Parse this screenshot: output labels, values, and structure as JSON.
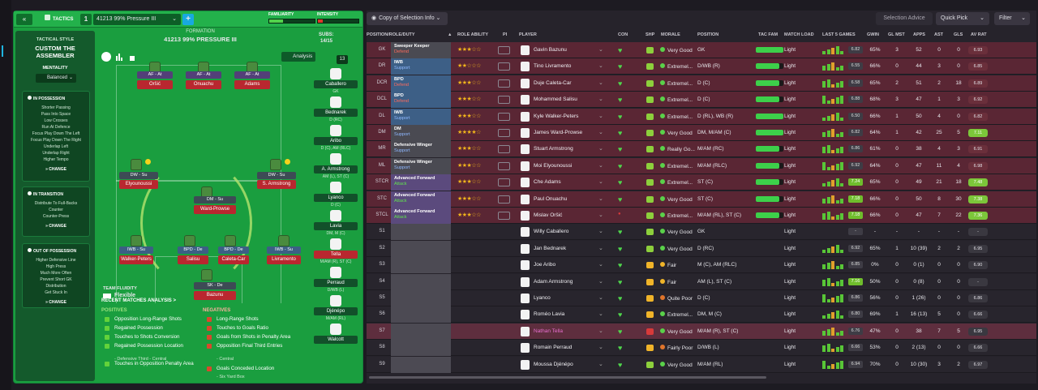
{
  "header": {
    "back": "«",
    "tab_label": "TACTICS",
    "tactic_num": "1",
    "tactic_name": "41213 99% Pressure III",
    "plus": "+",
    "familiarity_label": "FAMILIARITY",
    "intensity_label": "INTENSITY"
  },
  "sidebar": {
    "style_label": "TACTICAL STYLE",
    "style_name": "CUSTOM THE ASSEMBLER",
    "mentality_label": "MENTALITY",
    "mentality_value": "Balanced",
    "in_possession": {
      "title": "IN POSSESSION",
      "items": [
        "Shorter Passing",
        "Pass Into Space",
        "Low Crosses",
        "Run At Defence",
        "Focus Play Down The Left",
        "Focus Play Down The Right",
        "Underlap Left",
        "Underlap Right",
        "Higher Tempo"
      ],
      "change": "CHANGE"
    },
    "in_transition": {
      "title": "IN TRANSITION",
      "items": [
        "Distribute To Full-Backs",
        "Counter",
        "Counter-Press"
      ],
      "change": "CHANGE"
    },
    "out_of_possession": {
      "title": "OUT OF POSSESSION",
      "items": [
        "Higher Defensive Line",
        "High Press",
        "Much More Often",
        "Prevent Short GK",
        "Distribution",
        "Get Stuck In"
      ],
      "change": "CHANGE"
    }
  },
  "pitch": {
    "formation_label": "FORMATION",
    "formation_name": "41213 99% PRESSURE III",
    "analysis": "Analysis",
    "fluidity_label": "TEAM FLUIDITY",
    "fluidity_value": "Flexible",
    "players": {
      "af1_role": "AF - At",
      "af2_role": "AF - At",
      "af3_role": "AF - At",
      "af1": "Oršić",
      "af2": "Onuachu",
      "af3": "Adams",
      "dwl_role": "DW - Su",
      "dwr_role": "DW - Su",
      "dwl": "Elyounoussi",
      "dwr": "S. Armstrong",
      "dm_role": "DM - Su",
      "dm": "Ward-Prowse",
      "iwbl_role": "IWB - Su",
      "bpd1_role": "BPD - De",
      "bpd2_role": "BPD - De",
      "iwbr_role": "IWB - Su",
      "iwbl": "Walker-Peters",
      "bpd1": "Salisu",
      "bpd2": "Caleta-Car",
      "iwbr": "Livramento",
      "sk_role": "SK - De",
      "sk": "Bazunu"
    }
  },
  "subs": {
    "label": "SUBS:",
    "count": "14/15",
    "badge": "13",
    "list": [
      {
        "name": "Caballero",
        "pos": "GK"
      },
      {
        "name": "Bednarek",
        "pos": "D (RC)"
      },
      {
        "name": "Aribo",
        "pos": "D (C), AM (RLC)"
      },
      {
        "name": "A. Armstrong",
        "pos": "AM (L), ST (C)"
      },
      {
        "name": "Lyanco",
        "pos": "D (C)"
      },
      {
        "name": "Lavia",
        "pos": "DM, M (C)"
      },
      {
        "name": "Tella",
        "pos": "M/AM (R), ST (C)"
      },
      {
        "name": "Perraud",
        "pos": "D/WB (L)"
      },
      {
        "name": "Djénépo",
        "pos": "M/AM (RL)"
      },
      {
        "name": "Walcott",
        "pos": ""
      }
    ]
  },
  "analysis": {
    "title": "RECENT MATCHES ANALYSIS >",
    "positives_label": "POSITIVES",
    "negatives_label": "NEGATIVES",
    "positives": [
      "Opposition Long-Range Shots",
      "Regained Possession",
      "Touches to Shots Conversion",
      "Regained Possession Location",
      "Touches in Opposition Penalty Area"
    ],
    "positive_sub": "- Defensive Third - Central",
    "negatives": [
      "Long-Range Shots",
      "Touches to Goals Ratio",
      "Goals from Shots in Penalty Area",
      "Opposition Final Third Entries",
      "Goals Conceded Location"
    ],
    "neg_sub1": "- Central",
    "neg_sub2": "- Six Yard Box"
  },
  "toolbar": {
    "copy": "Copy of Selection Info",
    "advice": "Selection Advice",
    "quick_pick": "Quick Pick",
    "filter": "Filter"
  },
  "columns": {
    "pos": "POSITION/ROLE/DUTY",
    "ra": "ROLE ABILITY",
    "pi": "PI",
    "player": "PLAYER",
    "con": "CON",
    "shp": "SHP",
    "morale": "MORALE",
    "position": "POSITION",
    "tacfam": "TAC FAM",
    "mload": "MATCH LOAD",
    "last5": "LAST 5 GAMES",
    "gwin": "GWIN",
    "glmst": "GL MST",
    "apps": "APPS",
    "ast": "AST",
    "gls": "GLS",
    "avrat": "AV RAT"
  },
  "rows": [
    {
      "pos": "GK",
      "role": "Sweeper Keeper",
      "duty": "Defend",
      "stars": "★★★☆☆",
      "name": "Gavin Bazunu",
      "morale": "Very Good",
      "position": "GK",
      "load": "Light",
      "l5": "6.82",
      "gwin": "65%",
      "glm": "3",
      "apps": "52",
      "ast": "0",
      "gls": "0",
      "av": "6.93"
    },
    {
      "pos": "DR",
      "role": "IWB",
      "duty": "Support",
      "stars": "★★☆☆☆",
      "name": "Tino Livramento",
      "morale": "Extremel...",
      "position": "D/WB (R)",
      "load": "Light",
      "l5": "6.55",
      "gwin": "66%",
      "glm": "0",
      "apps": "44",
      "ast": "3",
      "gls": "0",
      "av": "6.85"
    },
    {
      "pos": "DCR",
      "role": "BPD",
      "duty": "Defend",
      "stars": "★★★☆☆",
      "name": "Duje Caleta-Car",
      "morale": "Extremel...",
      "position": "D (C)",
      "load": "Light",
      "l5": "6.58",
      "gwin": "65%",
      "glm": "2",
      "apps": "51",
      "ast": "2",
      "gls": "18",
      "av": "6.89"
    },
    {
      "pos": "DCL",
      "role": "BPD",
      "duty": "Defend",
      "stars": "★★★☆☆",
      "name": "Mohammed Salisu",
      "morale": "Extremel...",
      "position": "D (C)",
      "load": "Light",
      "l5": "6.88",
      "gwin": "68%",
      "glm": "3",
      "apps": "47",
      "ast": "1",
      "gls": "3",
      "av": "6.92"
    },
    {
      "pos": "DL",
      "role": "IWB",
      "duty": "Support",
      "stars": "★★★☆☆",
      "name": "Kyle Walker-Peters",
      "morale": "Extremel...",
      "position": "D (RL), WB (R)",
      "load": "Light",
      "l5": "6.50",
      "gwin": "66%",
      "glm": "1",
      "apps": "50",
      "ast": "4",
      "gls": "0",
      "av": "6.82"
    },
    {
      "pos": "DM",
      "role": "DM",
      "duty": "Support",
      "stars": "★★★★☆",
      "name": "James Ward-Prowse",
      "morale": "Very Good",
      "position": "DM, M/AM (C)",
      "load": "Light",
      "l5": "6.82",
      "gwin": "64%",
      "glm": "1",
      "apps": "42",
      "ast": "25",
      "gls": "5",
      "av": "7.11"
    },
    {
      "pos": "MR",
      "role": "Defensive Winger",
      "duty": "Support",
      "stars": "★★★☆☆",
      "name": "Stuart Armstrong",
      "morale": "Really Go...",
      "position": "M/AM (RC)",
      "load": "Light",
      "l5": "6.86",
      "gwin": "61%",
      "glm": "0",
      "apps": "38",
      "ast": "4",
      "gls": "3",
      "av": "6.91"
    },
    {
      "pos": "ML",
      "role": "Defensive Winger",
      "duty": "Support",
      "stars": "★★★☆☆",
      "name": "Moi Elyounoussi",
      "morale": "Extremel...",
      "position": "M/AM (RLC)",
      "load": "Light",
      "l5": "6.92",
      "gwin": "64%",
      "glm": "0",
      "apps": "47",
      "ast": "11",
      "gls": "4",
      "av": "6.98"
    },
    {
      "pos": "STCR",
      "role": "Advanced Forward",
      "duty": "Attack",
      "stars": "★★★☆☆",
      "name": "Che Adams",
      "morale": "Extremel...",
      "position": "ST (C)",
      "load": "Light",
      "l5": "7.24",
      "gwin": "65%",
      "glm": "0",
      "apps": "49",
      "ast": "21",
      "gls": "18",
      "av": "7.48"
    },
    {
      "pos": "STC",
      "role": "Advanced Forward",
      "duty": "Attack",
      "stars": "★★★☆☆",
      "name": "Paul Onuachu",
      "morale": "Very Good",
      "position": "ST (C)",
      "load": "Light",
      "l5": "7.18",
      "gwin": "66%",
      "glm": "0",
      "apps": "50",
      "ast": "8",
      "gls": "30",
      "av": "7.38"
    },
    {
      "pos": "STCL",
      "role": "Advanced Forward",
      "duty": "Attack",
      "stars": "★★★☆☆",
      "name": "Mislav Oršić",
      "morale": "Extremel...",
      "position": "M/AM (RL), ST (C)",
      "load": "Light",
      "l5": "7.18",
      "gwin": "66%",
      "glm": "0",
      "apps": "47",
      "ast": "7",
      "gls": "22",
      "av": "7.36"
    },
    {
      "pos": "S1",
      "role": "",
      "duty": "",
      "stars": "",
      "name": "Willy Caballero",
      "morale": "Very Good",
      "position": "GK",
      "load": "Light",
      "l5": "-",
      "gwin": "-",
      "glm": "-",
      "apps": "-",
      "ast": "-",
      "gls": "-",
      "av": "-"
    },
    {
      "pos": "S2",
      "role": "",
      "duty": "",
      "stars": "",
      "name": "Jan Bednarek",
      "morale": "Very Good",
      "position": "D (RC)",
      "load": "Light",
      "l5": "6.92",
      "gwin": "65%",
      "glm": "1",
      "apps": "10 (39)",
      "ast": "2",
      "gls": "2",
      "av": "6.95"
    },
    {
      "pos": "S3",
      "role": "",
      "duty": "",
      "stars": "",
      "name": "Joe Aribo",
      "morale": "Fair",
      "position": "M (C), AM (RLC)",
      "load": "Light",
      "l5": "6.85",
      "gwin": "0%",
      "glm": "0",
      "apps": "0 (1)",
      "ast": "0",
      "gls": "0",
      "av": "6.90"
    },
    {
      "pos": "S4",
      "role": "",
      "duty": "",
      "stars": "",
      "name": "Adam Armstrong",
      "morale": "Fair",
      "position": "AM (L), ST (C)",
      "load": "Light",
      "l5": "7.16",
      "gwin": "50%",
      "glm": "0",
      "apps": "0 (8)",
      "ast": "0",
      "gls": "0",
      "av": "-"
    },
    {
      "pos": "S5",
      "role": "",
      "duty": "",
      "stars": "",
      "name": "Lyanco",
      "morale": "Quite Poor",
      "position": "D (C)",
      "load": "Light",
      "l5": "6.86",
      "gwin": "56%",
      "glm": "0",
      "apps": "1 (26)",
      "ast": "0",
      "gls": "0",
      "av": "6.86"
    },
    {
      "pos": "S6",
      "role": "",
      "duty": "",
      "stars": "",
      "name": "Roméo Lavia",
      "morale": "Extremel...",
      "position": "DM, M (C)",
      "load": "Light",
      "l5": "6.80",
      "gwin": "69%",
      "glm": "1",
      "apps": "16 (13)",
      "ast": "5",
      "gls": "0",
      "av": "6.66"
    },
    {
      "pos": "S7",
      "role": "",
      "duty": "",
      "stars": "",
      "name": "Nathan Tella",
      "morale": "Very Good",
      "position": "M/AM (R), ST (C)",
      "load": "Light",
      "l5": "6.76",
      "gwin": "47%",
      "glm": "0",
      "apps": "38",
      "ast": "7",
      "gls": "5",
      "av": "6.95"
    },
    {
      "pos": "S8",
      "role": "",
      "duty": "",
      "stars": "",
      "name": "Romain Perraud",
      "morale": "Fairly Poor",
      "position": "D/WB (L)",
      "load": "Light",
      "l5": "6.66",
      "gwin": "53%",
      "glm": "0",
      "apps": "2 (13)",
      "ast": "0",
      "gls": "0",
      "av": "6.66"
    },
    {
      "pos": "S9",
      "role": "",
      "duty": "",
      "stars": "",
      "name": "Moussa Djénépo",
      "morale": "Very Good",
      "position": "M/AM (RL)",
      "load": "Light",
      "l5": "6.94",
      "gwin": "70%",
      "glm": "0",
      "apps": "10 (30)",
      "ast": "3",
      "gls": "2",
      "av": "6.97"
    }
  ],
  "colors": {
    "accent_green": "#1a9e3f",
    "table_red": "#5a2634",
    "role_blue": "#3d5f86",
    "role_purple": "#5b4a7d",
    "role_grey": "#4a4a52",
    "rating_green": "#7cc63a"
  }
}
